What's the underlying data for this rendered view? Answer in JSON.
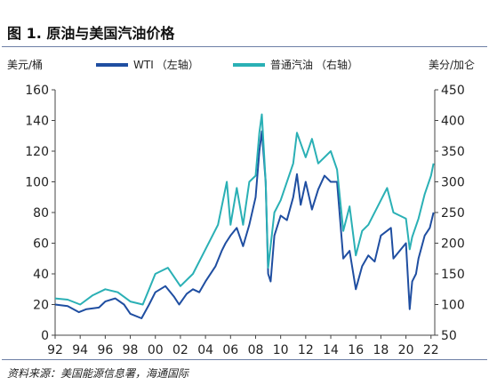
{
  "title": "图 1. 原油与美国汽油价格",
  "source": "资料来源：美国能源信息署，海通国际",
  "chart_data": {
    "type": "line",
    "left_unit": "美元/桶",
    "right_unit": "美分/加仑",
    "x_ticks": [
      "92",
      "94",
      "96",
      "98",
      "00",
      "02",
      "04",
      "06",
      "08",
      "10",
      "12",
      "14",
      "16",
      "18",
      "20",
      "22"
    ],
    "x_range": [
      1992,
      2022.3
    ],
    "y_left": {
      "ticks": [
        0,
        20,
        40,
        60,
        80,
        100,
        120,
        140,
        160
      ],
      "range": [
        0,
        160
      ]
    },
    "y_right": {
      "ticks": [
        50,
        100,
        150,
        200,
        250,
        300,
        350,
        400,
        450
      ],
      "range": [
        50,
        450
      ]
    },
    "series": [
      {
        "name": "WTI",
        "axis_label": "（左轴）",
        "axis": "left",
        "color": "#1f4ea1",
        "x": [
          1992.0,
          1993.0,
          1993.9,
          1994.5,
          1995.5,
          1996.0,
          1996.8,
          1997.5,
          1998.0,
          1998.9,
          1999.5,
          2000.0,
          2000.8,
          2001.5,
          2001.9,
          2002.5,
          2003.0,
          2003.5,
          2004.0,
          2004.8,
          2005.3,
          2005.6,
          2006.0,
          2006.5,
          2007.0,
          2007.5,
          2008.0,
          2008.3,
          2008.5,
          2008.8,
          2009.0,
          2009.2,
          2009.5,
          2010.0,
          2010.5,
          2011.0,
          2011.3,
          2011.6,
          2012.0,
          2012.5,
          2013.0,
          2013.5,
          2014.0,
          2014.5,
          2015.0,
          2015.5,
          2016.0,
          2016.5,
          2017.0,
          2017.5,
          2018.0,
          2018.8,
          2019.0,
          2019.5,
          2020.0,
          2020.3,
          2020.5,
          2020.8,
          2021.0,
          2021.5,
          2021.9,
          2022.2
        ],
        "y": [
          20,
          19,
          15,
          17,
          18,
          22,
          24,
          20,
          14,
          11,
          20,
          28,
          32,
          25,
          20,
          27,
          30,
          28,
          35,
          45,
          55,
          60,
          65,
          70,
          58,
          72,
          90,
          120,
          133,
          100,
          40,
          35,
          65,
          78,
          75,
          90,
          105,
          85,
          100,
          82,
          95,
          104,
          100,
          100,
          50,
          55,
          30,
          45,
          52,
          48,
          65,
          70,
          50,
          55,
          60,
          17,
          35,
          40,
          50,
          65,
          70,
          80
        ]
      },
      {
        "name": "普通汽油",
        "axis_label": "（右轴）",
        "axis": "right",
        "color": "#2ab0b5",
        "x": [
          1992.0,
          1993.0,
          1994.0,
          1995.0,
          1996.0,
          1997.0,
          1998.0,
          1999.0,
          1999.5,
          2000.0,
          2001.0,
          2002.0,
          2003.0,
          2004.0,
          2005.0,
          2005.7,
          2006.0,
          2006.5,
          2007.0,
          2007.5,
          2008.0,
          2008.3,
          2008.5,
          2008.8,
          2009.0,
          2009.5,
          2010.0,
          2011.0,
          2011.3,
          2012.0,
          2012.5,
          2013.0,
          2014.0,
          2014.5,
          2015.0,
          2015.5,
          2016.0,
          2016.5,
          2017.0,
          2018.0,
          2018.5,
          2019.0,
          2020.0,
          2020.3,
          2020.5,
          2021.0,
          2021.5,
          2022.0,
          2022.2
        ],
        "y": [
          110,
          108,
          100,
          115,
          125,
          120,
          105,
          100,
          125,
          150,
          160,
          130,
          150,
          190,
          230,
          300,
          230,
          290,
          230,
          300,
          310,
          380,
          410,
          300,
          160,
          250,
          270,
          330,
          380,
          340,
          370,
          330,
          350,
          320,
          220,
          260,
          180,
          220,
          230,
          270,
          290,
          250,
          240,
          190,
          210,
          240,
          280,
          310,
          330
        ]
      }
    ]
  }
}
